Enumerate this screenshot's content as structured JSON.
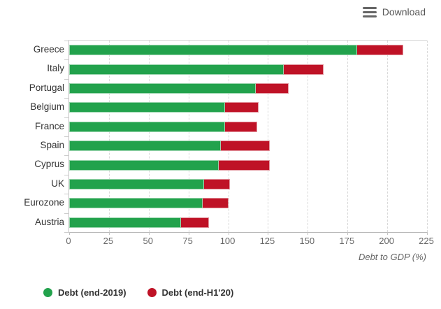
{
  "toolbar": {
    "download_label": "Download"
  },
  "colors": {
    "green": "#22a24c",
    "red": "#bf1226",
    "axis_text": "#666666",
    "category_text": "#333333"
  },
  "x_axis": {
    "title": "Debt to GDP (%)",
    "ticks": [
      0,
      25,
      50,
      75,
      100,
      125,
      150,
      175,
      200,
      225
    ],
    "max": 225
  },
  "legend": {
    "items": [
      {
        "label": "Debt (end-2019)",
        "color": "#22a24c"
      },
      {
        "label": "Debt (end-H1'20)",
        "color": "#bf1226"
      }
    ]
  },
  "chart_data": {
    "type": "bar",
    "orientation": "horizontal",
    "overlay_note": "red bar = Debt (end-H1'20) level drawn full length; green bar = Debt (end-2019) level overlaid from 0, so visible red segment is the H1'20 increase",
    "title": "",
    "xlabel": "Debt to GDP (%)",
    "ylabel": "",
    "xlim": [
      0,
      225
    ],
    "grid": "vertical dashed every 25",
    "legend_position": "bottom-left",
    "categories": [
      "Greece",
      "Italy",
      "Portugal",
      "Belgium",
      "France",
      "Spain",
      "Cyprus",
      "UK",
      "Eurozone",
      "Austria"
    ],
    "series": [
      {
        "name": "Debt (end-2019)",
        "color": "#22a24c",
        "values": [
          181,
          135,
          117.5,
          98,
          98,
          95.5,
          94,
          85,
          84,
          70.5
        ]
      },
      {
        "name": "Debt (end-H1'20)",
        "color": "#bf1226",
        "values": [
          210,
          160,
          138,
          119,
          118,
          126,
          126,
          101,
          100,
          88
        ]
      }
    ]
  }
}
